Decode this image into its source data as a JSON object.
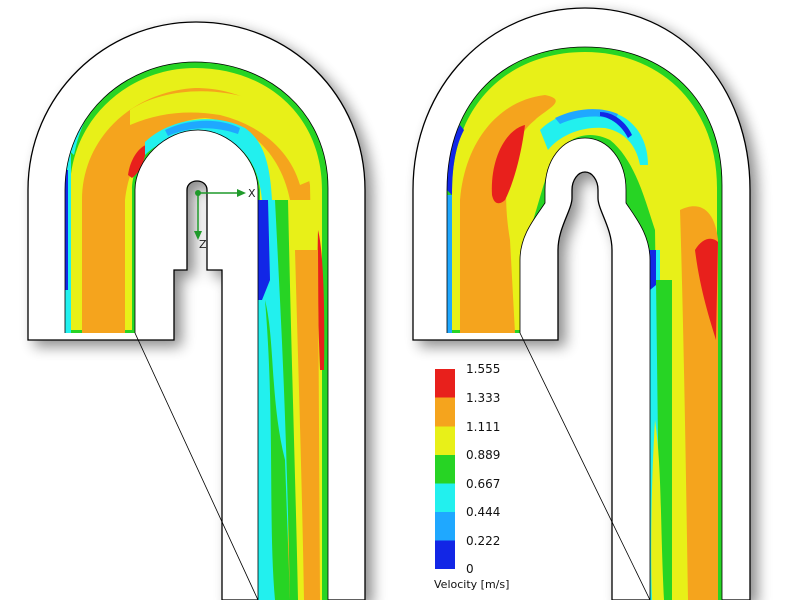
{
  "colors": {
    "red": "#e8201c",
    "orange": "#f5a41d",
    "yellow": "#e8f018",
    "green": "#27d424",
    "cyan": "#22f0ee",
    "lightblue": "#1fa8ff",
    "blue": "#1226e6",
    "background": "#ffffff",
    "wall": "#ffffff",
    "outline": "#000000"
  },
  "legend": {
    "title": "Velocity [m/s]",
    "ticks": [
      "1.555",
      "1.333",
      "1.111",
      "0.889",
      "0.667",
      "0.444",
      "0.222",
      "0"
    ],
    "bands": [
      "red",
      "orange",
      "yellow",
      "green",
      "cyan",
      "lightblue",
      "blue"
    ]
  },
  "axes": {
    "x_label": "X",
    "z_label": "Z"
  }
}
